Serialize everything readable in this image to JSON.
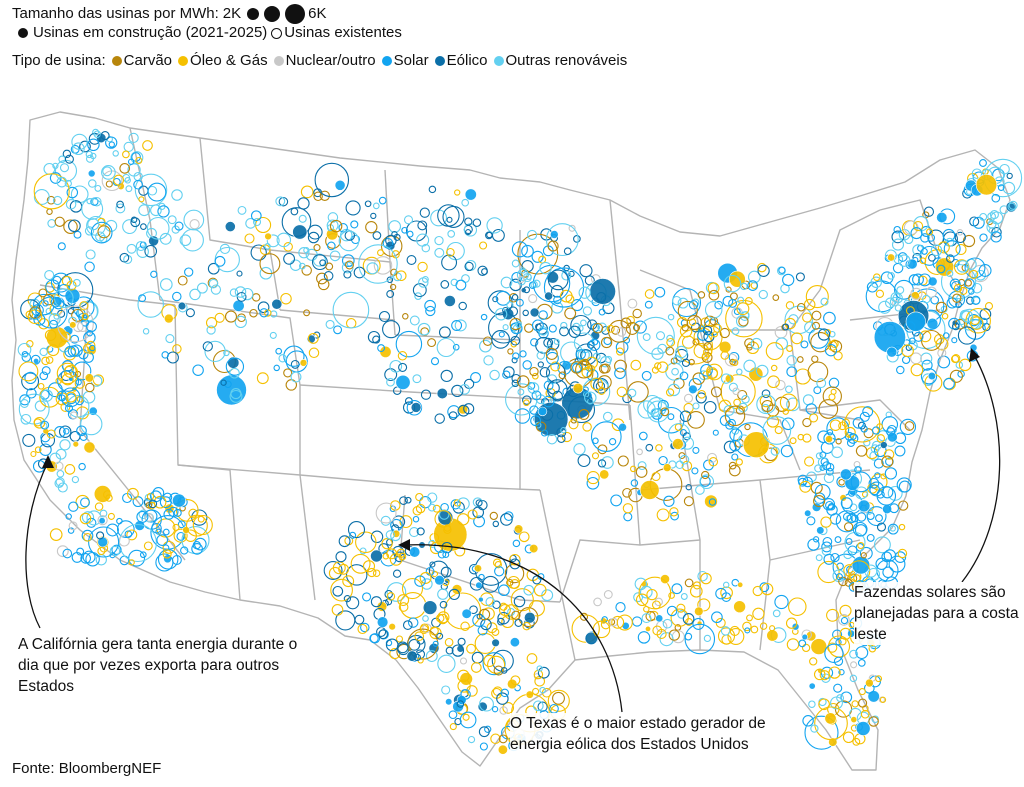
{
  "legend": {
    "size_label": "Tamanho das usinas por MWh:",
    "size_min": "2K",
    "size_max": "6K",
    "construction_label": "Usinas em construção (2021-2025)",
    "existing_label": "Usinas existentes",
    "type_label": "Tipo de usina:",
    "types": [
      {
        "label": "Carvão",
        "color": "#b8860b"
      },
      {
        "label": "Óleo & Gás",
        "color": "#f5c000"
      },
      {
        "label": "Nuclear/outro",
        "color": "#c8c8c8"
      },
      {
        "label": "Solar",
        "color": "#12a4f0"
      },
      {
        "label": "Eólico",
        "color": "#0b6fa8"
      },
      {
        "label": "Outras renováveis",
        "color": "#63d0f0"
      }
    ]
  },
  "annotations": {
    "california": "A Califórnia gera tanta energia durante o dia que por vezes exporta para outros Estados",
    "texas": "O Texas é o maior estado gerador de energia eólica dos Estados Unidos",
    "east_coast": "Fazendas solares são planejadas para a costa leste"
  },
  "source": "Fonte: BloombergNEF",
  "map": {
    "border_color": "#b4b4b4"
  }
}
